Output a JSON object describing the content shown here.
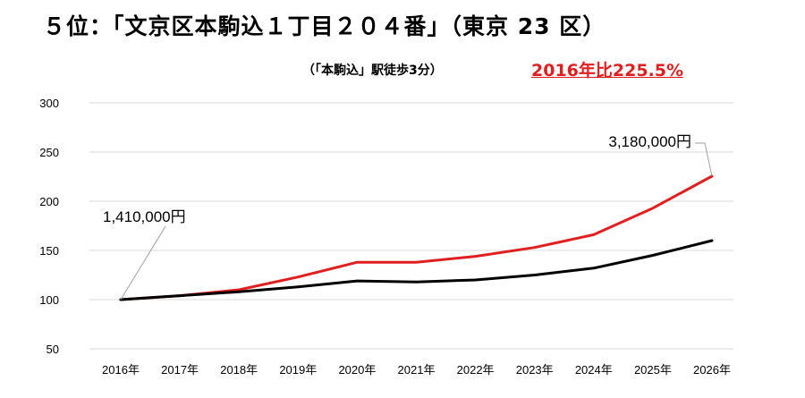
{
  "title": "５位：「文京区本駒込１丁目２０４番」（東京 23 区）",
  "subtitle": "（「本駒込」駅徒歩3分）",
  "growth_label": "2016年比225.5%",
  "colors": {
    "red_series": "#e02020",
    "black_series": "#000000",
    "grid": "#d9d9d9"
  },
  "chart_data": {
    "type": "line",
    "title": "",
    "xlabel": "",
    "ylabel": "",
    "categories": [
      "2016年",
      "2017年",
      "2018年",
      "2019年",
      "2020年",
      "2021年",
      "2022年",
      "2023年",
      "2024年",
      "2025年",
      "2026年"
    ],
    "ylim": [
      50,
      300
    ],
    "yticks": [
      50,
      100,
      150,
      200,
      250,
      300
    ],
    "grid": true,
    "series": [
      {
        "values": [
          100,
          104,
          110,
          123,
          138,
          138,
          144,
          153,
          166,
          193,
          225.5
        ],
        "color": "#e02020"
      },
      {
        "values": [
          100,
          104,
          108,
          113,
          119,
          118,
          120,
          125,
          132,
          145,
          160
        ],
        "color": "#000000"
      }
    ],
    "annotations": [
      {
        "text": "1,410,000円",
        "category": "2016年",
        "value": 100
      },
      {
        "text": "3,180,000円",
        "category": "2026年",
        "value": 225.5
      }
    ]
  }
}
